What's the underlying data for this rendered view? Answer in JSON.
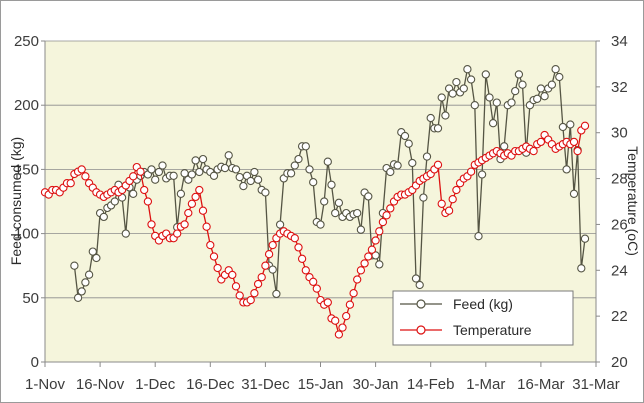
{
  "chart_data": {
    "type": "line",
    "title": "",
    "xlabel": "",
    "ylabel": "Feed consumed (kg)",
    "y2label": "Temperature (oC)",
    "x_tick_labels": [
      "1-Nov",
      "16-Nov",
      "1-Dec",
      "16-Dec",
      "31-Dec",
      "15-Jan",
      "30-Jan",
      "14-Feb",
      "1-Mar",
      "16-Mar",
      "31-Mar"
    ],
    "x_tick_days": [
      0,
      15,
      30,
      45,
      60,
      75,
      90,
      105,
      120,
      135,
      150
    ],
    "xlim_days": [
      0,
      150
    ],
    "ylim": [
      0,
      250
    ],
    "y_ticks": [
      0,
      50,
      100,
      150,
      200,
      250
    ],
    "y2lim": [
      20,
      34
    ],
    "y2_ticks": [
      20,
      22,
      24,
      26,
      28,
      30,
      32,
      34
    ],
    "grid": "horizontal",
    "legend_position": "bottom-right",
    "plot_background": "#f5f5dc",
    "series": [
      {
        "name": "Feed (kg)",
        "axis": "left",
        "color": "#555544",
        "marker_fill": "#ffffff",
        "points": [
          [
            8,
            75
          ],
          [
            9,
            50
          ],
          [
            10,
            55
          ],
          [
            11,
            62
          ],
          [
            12,
            68
          ],
          [
            13,
            86
          ],
          [
            14,
            81
          ],
          [
            15,
            116
          ],
          [
            16,
            113
          ],
          [
            17,
            120
          ],
          [
            18,
            122
          ],
          [
            19,
            125
          ],
          [
            20,
            138
          ],
          [
            21,
            128
          ],
          [
            22,
            100
          ],
          [
            23,
            136
          ],
          [
            24,
            131
          ],
          [
            25,
            142
          ],
          [
            26,
            145
          ],
          [
            27,
            148
          ],
          [
            28,
            146
          ],
          [
            29,
            150
          ],
          [
            30,
            142
          ],
          [
            31,
            148
          ],
          [
            32,
            153
          ],
          [
            33,
            143
          ],
          [
            34,
            145
          ],
          [
            35,
            145
          ],
          [
            36,
            105
          ],
          [
            37,
            131
          ],
          [
            38,
            147
          ],
          [
            39,
            142
          ],
          [
            40,
            146
          ],
          [
            41,
            157
          ],
          [
            42,
            148
          ],
          [
            43,
            158
          ],
          [
            44,
            150
          ],
          [
            45,
            148
          ],
          [
            46,
            145
          ],
          [
            47,
            150
          ],
          [
            48,
            152
          ],
          [
            49,
            151
          ],
          [
            50,
            161
          ],
          [
            51,
            151
          ],
          [
            52,
            150
          ],
          [
            53,
            144
          ],
          [
            54,
            137
          ],
          [
            55,
            145
          ],
          [
            56,
            141
          ],
          [
            57,
            148
          ],
          [
            58,
            142
          ],
          [
            59,
            134
          ],
          [
            60,
            132
          ],
          [
            61,
            75
          ],
          [
            62,
            72
          ],
          [
            63,
            53
          ],
          [
            64,
            107
          ],
          [
            65,
            143
          ],
          [
            66,
            147
          ],
          [
            67,
            147
          ],
          [
            68,
            153
          ],
          [
            69,
            158
          ],
          [
            70,
            168
          ],
          [
            71,
            168
          ],
          [
            72,
            150
          ],
          [
            73,
            140
          ],
          [
            74,
            109
          ],
          [
            75,
            107
          ],
          [
            76,
            125
          ],
          [
            77,
            156
          ],
          [
            78,
            138
          ],
          [
            79,
            116
          ],
          [
            80,
            124
          ],
          [
            81,
            113
          ],
          [
            82,
            116
          ],
          [
            83,
            113
          ],
          [
            84,
            115
          ],
          [
            85,
            116
          ],
          [
            86,
            103
          ],
          [
            87,
            132
          ],
          [
            88,
            129
          ],
          [
            89,
            83
          ],
          [
            90,
            83
          ],
          [
            91,
            76
          ],
          [
            92,
            116
          ],
          [
            93,
            151
          ],
          [
            94,
            148
          ],
          [
            95,
            154
          ],
          [
            96,
            153
          ],
          [
            97,
            179
          ],
          [
            98,
            176
          ],
          [
            99,
            170
          ],
          [
            100,
            155
          ],
          [
            101,
            65
          ],
          [
            102,
            60
          ],
          [
            103,
            128
          ],
          [
            104,
            160
          ],
          [
            105,
            190
          ],
          [
            106,
            182
          ],
          [
            107,
            182
          ],
          [
            108,
            206
          ],
          [
            109,
            192
          ],
          [
            110,
            213
          ],
          [
            111,
            209
          ],
          [
            112,
            218
          ],
          [
            113,
            210
          ],
          [
            114,
            213
          ],
          [
            115,
            228
          ],
          [
            116,
            220
          ],
          [
            117,
            200
          ],
          [
            118,
            98
          ],
          [
            119,
            146
          ],
          [
            120,
            224
          ],
          [
            121,
            206
          ],
          [
            122,
            186
          ],
          [
            123,
            202
          ],
          [
            124,
            158
          ],
          [
            125,
            168
          ],
          [
            126,
            200
          ],
          [
            127,
            202
          ],
          [
            128,
            211
          ],
          [
            129,
            224
          ],
          [
            130,
            216
          ],
          [
            131,
            163
          ],
          [
            132,
            200
          ],
          [
            133,
            204
          ],
          [
            134,
            205
          ],
          [
            135,
            213
          ],
          [
            136,
            207
          ],
          [
            137,
            213
          ],
          [
            138,
            216
          ],
          [
            139,
            228
          ],
          [
            140,
            222
          ],
          [
            141,
            183
          ],
          [
            142,
            150
          ],
          [
            143,
            185
          ],
          [
            144,
            131
          ],
          [
            145,
            165
          ],
          [
            146,
            73
          ],
          [
            147,
            96
          ]
        ]
      },
      {
        "name": "Temperature",
        "axis": "right",
        "color": "#dd1111",
        "marker_fill": "#ffffff",
        "points": [
          [
            0,
            27.4
          ],
          [
            1,
            27.3
          ],
          [
            2,
            27.5
          ],
          [
            3,
            27.5
          ],
          [
            4,
            27.4
          ],
          [
            5,
            27.6
          ],
          [
            6,
            27.8
          ],
          [
            7,
            27.8
          ],
          [
            8,
            28.2
          ],
          [
            9,
            28.3
          ],
          [
            10,
            28.4
          ],
          [
            11,
            28.1
          ],
          [
            12,
            27.8
          ],
          [
            13,
            27.6
          ],
          [
            14,
            27.4
          ],
          [
            15,
            27.3
          ],
          [
            16,
            27.2
          ],
          [
            17,
            27.3
          ],
          [
            18,
            27.4
          ],
          [
            19,
            27.5
          ],
          [
            20,
            27.4
          ],
          [
            21,
            27.5
          ],
          [
            22,
            27.7
          ],
          [
            23,
            27.9
          ],
          [
            24,
            28.1
          ],
          [
            25,
            28.5
          ],
          [
            26,
            28.3
          ],
          [
            27,
            27.5
          ],
          [
            28,
            27.0
          ],
          [
            29,
            26.0
          ],
          [
            30,
            25.5
          ],
          [
            31,
            25.3
          ],
          [
            32,
            25.5
          ],
          [
            33,
            25.6
          ],
          [
            34,
            25.4
          ],
          [
            35,
            25.4
          ],
          [
            36,
            25.6
          ],
          [
            37,
            25.9
          ],
          [
            38,
            26.0
          ],
          [
            39,
            26.5
          ],
          [
            40,
            26.9
          ],
          [
            41,
            27.2
          ],
          [
            42,
            27.5
          ],
          [
            43,
            26.6
          ],
          [
            44,
            25.9
          ],
          [
            45,
            25.1
          ],
          [
            46,
            24.6
          ],
          [
            47,
            24.1
          ],
          [
            48,
            23.6
          ],
          [
            49,
            23.8
          ],
          [
            50,
            24.0
          ],
          [
            51,
            23.8
          ],
          [
            52,
            23.3
          ],
          [
            53,
            22.9
          ],
          [
            54,
            22.6
          ],
          [
            55,
            22.6
          ],
          [
            56,
            22.7
          ],
          [
            57,
            23.0
          ],
          [
            58,
            23.4
          ],
          [
            59,
            23.7
          ],
          [
            60,
            24.2
          ],
          [
            61,
            24.7
          ],
          [
            62,
            25.1
          ],
          [
            63,
            25.4
          ],
          [
            64,
            25.6
          ],
          [
            65,
            25.7
          ],
          [
            66,
            25.6
          ],
          [
            67,
            25.5
          ],
          [
            68,
            25.4
          ],
          [
            69,
            25.0
          ],
          [
            70,
            24.5
          ],
          [
            71,
            24.0
          ],
          [
            72,
            23.7
          ],
          [
            73,
            23.5
          ],
          [
            74,
            23.2
          ],
          [
            75,
            22.7
          ],
          [
            76,
            22.5
          ],
          [
            77,
            22.6
          ],
          [
            78,
            21.9
          ],
          [
            79,
            21.8
          ],
          [
            80,
            21.2
          ],
          [
            81,
            21.5
          ],
          [
            82,
            22.0
          ],
          [
            83,
            22.5
          ],
          [
            84,
            23.0
          ],
          [
            85,
            23.6
          ],
          [
            86,
            24.0
          ],
          [
            87,
            24.3
          ],
          [
            88,
            24.6
          ],
          [
            89,
            24.9
          ],
          [
            90,
            25.3
          ],
          [
            91,
            25.7
          ],
          [
            92,
            26.1
          ],
          [
            93,
            26.4
          ],
          [
            94,
            26.7
          ],
          [
            95,
            27.0
          ],
          [
            96,
            27.2
          ],
          [
            97,
            27.3
          ],
          [
            98,
            27.3
          ],
          [
            99,
            27.4
          ],
          [
            100,
            27.5
          ],
          [
            101,
            27.7
          ],
          [
            102,
            27.9
          ],
          [
            103,
            28.0
          ],
          [
            104,
            28.1
          ],
          [
            105,
            28.2
          ],
          [
            106,
            28.4
          ],
          [
            107,
            28.6
          ],
          [
            108,
            26.9
          ],
          [
            109,
            26.5
          ],
          [
            110,
            26.6
          ],
          [
            111,
            27.1
          ],
          [
            112,
            27.5
          ],
          [
            113,
            27.8
          ],
          [
            114,
            28.0
          ],
          [
            115,
            28.1
          ],
          [
            116,
            28.3
          ],
          [
            117,
            28.6
          ],
          [
            118,
            28.7
          ],
          [
            119,
            28.8
          ],
          [
            120,
            28.9
          ],
          [
            121,
            29.0
          ],
          [
            122,
            29.1
          ],
          [
            123,
            29.2
          ],
          [
            124,
            29.1
          ],
          [
            125,
            29.0
          ],
          [
            126,
            29.1
          ],
          [
            127,
            29.0
          ],
          [
            128,
            29.2
          ],
          [
            129,
            29.2
          ],
          [
            130,
            29.3
          ],
          [
            131,
            29.4
          ],
          [
            132,
            29.3
          ],
          [
            133,
            29.2
          ],
          [
            134,
            29.5
          ],
          [
            135,
            29.6
          ],
          [
            136,
            29.9
          ],
          [
            137,
            29.7
          ],
          [
            138,
            29.5
          ],
          [
            139,
            29.3
          ],
          [
            140,
            29.4
          ],
          [
            141,
            29.5
          ],
          [
            142,
            29.6
          ],
          [
            143,
            29.5
          ],
          [
            144,
            29.6
          ],
          [
            145,
            29.2
          ],
          [
            146,
            30.1
          ],
          [
            147,
            30.3
          ]
        ]
      }
    ]
  }
}
